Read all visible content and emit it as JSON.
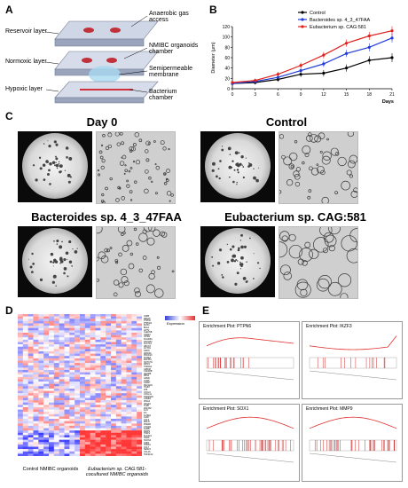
{
  "panels": {
    "a": "A",
    "b": "B",
    "c": "C",
    "d": "D",
    "e": "E"
  },
  "panel_a": {
    "labels_left": [
      "Reservoir layer",
      "Normoxic layer",
      "Hypoxic layer"
    ],
    "labels_right": [
      "Anaerobic gas access",
      "NMIBC organoids chamber",
      "Semipermeable membrane",
      "Bacterium chamber"
    ]
  },
  "chart_data": {
    "type": "line",
    "x": [
      0,
      3,
      6,
      9,
      12,
      15,
      18,
      21
    ],
    "xlabel": "Days",
    "ylabel": "Diameter (μm)",
    "ylim": [
      0,
      120
    ],
    "yticks": [
      0,
      20,
      40,
      60,
      80,
      100,
      120
    ],
    "legend_position": "top-right",
    "series": [
      {
        "name": "Control",
        "color": "#000000",
        "values": [
          10,
          12,
          18,
          28,
          30,
          40,
          55,
          60
        ]
      },
      {
        "name": "Bacteroides sp. 4_3_47FAA",
        "color": "#1f3bd6",
        "values": [
          10,
          14,
          22,
          35,
          48,
          68,
          80,
          98
        ]
      },
      {
        "name": "Eubacterium sp. CAG:581",
        "color": "#e0201b",
        "values": [
          12,
          16,
          28,
          45,
          65,
          88,
          102,
          112
        ]
      }
    ]
  },
  "panel_c": {
    "titles": [
      "Day 0",
      "Control",
      "Bacteroides sp. 4_3_47FAA",
      "Eubacterium sp. CAG:581"
    ]
  },
  "panel_d": {
    "genes": [
      "CD85",
      "FBN15",
      "PTPN6",
      "PTPN22",
      "IKZF3",
      "BCL6",
      "LIPT2",
      "CLEC5B",
      "C3AR1",
      "VIPR2",
      "FCGR3A",
      "HAVCR2",
      "SLC7A1",
      "ABCC3",
      "ACTN1",
      "ASPN",
      "ARID3A",
      "PDCD10",
      "KCNE3",
      "ZNF354",
      "NOTCH1",
      "RIPK2",
      "TSPAN1",
      "GPR48",
      "CSF2RB",
      "ADAM8",
      "PBS1",
      "GZMA",
      "CCR5",
      "CD207",
      "PECAM1",
      "ITGB7",
      "LTB",
      "CXCL9",
      "CXCL11",
      "TNFRSF6",
      "CSMD1",
      "PDIA3",
      "VEGFA",
      "TLR8",
      "ZNF462",
      "IL15",
      "IL6",
      "IL15RA",
      "CCR7",
      "CCL3",
      "MSLN",
      "PDE4B",
      "CXCR4",
      "IL2RB",
      "MMP9",
      "TIMP1",
      "SLC4A1",
      "NOD1",
      "SOCS3",
      "CDH1",
      "THBS4",
      "CCL7",
      "SEMA7",
      "CCL19",
      "TNFSF12"
    ],
    "legend_label": "Expression",
    "group_labels": [
      "Control NMIBC organoids",
      "Eubacterium sp. CAG:581-cocultured NMIBC organoids"
    ]
  },
  "panel_e": {
    "plots": [
      "Enrichment Plot: PTPN6",
      "Enrichment Plot: IKZF3",
      "Enrichment Plot: SOX1",
      "Enrichment Plot: MMP9"
    ]
  }
}
